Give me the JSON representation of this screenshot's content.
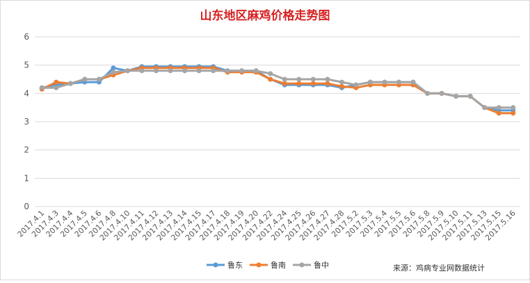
{
  "chart_data": {
    "type": "line",
    "title": "山东地区麻鸡价格走势图",
    "source": "来源：鸡病专业网数据统计",
    "ylim": [
      0,
      6
    ],
    "yticks": [
      0,
      1,
      2,
      3,
      4,
      5,
      6
    ],
    "grid": true,
    "legend_position": "bottom",
    "categories": [
      "2017.4.1",
      "2017.4.3",
      "2017.4.4",
      "2017.4.5",
      "2017.4.6",
      "2017.4.8",
      "2017.4.10",
      "2017.4.11",
      "2017.4.12",
      "2017.4.13",
      "2017.4.14",
      "2017.4.15",
      "2017.4.17",
      "2017.4.18",
      "2017.4.19",
      "2017.4.20",
      "2017.4.22",
      "2017.4.24",
      "2017.4.25",
      "2017.4.26",
      "2017.4.27",
      "2017.4.28",
      "2017.5.2",
      "2017.5.3",
      "2017.5.4",
      "2017.5.5",
      "2017.5.6",
      "2017.5.8",
      "2017.5.9",
      "2017.5.10",
      "2017.5.11",
      "2017.5.13",
      "2017.5.15",
      "2017.5.16"
    ],
    "series": [
      {
        "name": "鲁东",
        "color": "#5b9bd5",
        "values": [
          4.2,
          4.3,
          4.35,
          4.4,
          4.4,
          4.9,
          4.8,
          4.95,
          4.95,
          4.95,
          4.95,
          4.95,
          4.95,
          4.8,
          4.8,
          4.8,
          4.5,
          4.3,
          4.3,
          4.3,
          4.3,
          4.2,
          4.3,
          4.4,
          4.4,
          4.4,
          4.4,
          4.0,
          4.0,
          3.9,
          3.9,
          3.5,
          3.4,
          3.4
        ]
      },
      {
        "name": "鲁南",
        "color": "#ed7d31",
        "values": [
          4.15,
          4.4,
          4.35,
          4.5,
          4.5,
          4.65,
          4.8,
          4.9,
          4.9,
          4.9,
          4.9,
          4.9,
          4.9,
          4.75,
          4.75,
          4.75,
          4.5,
          4.35,
          4.35,
          4.35,
          4.35,
          4.25,
          4.2,
          4.3,
          4.3,
          4.3,
          4.3,
          4.0,
          4.0,
          3.9,
          3.9,
          3.5,
          3.3,
          3.3
        ]
      },
      {
        "name": "鲁中",
        "color": "#a5a5a5",
        "values": [
          4.2,
          4.2,
          4.35,
          4.5,
          4.5,
          4.75,
          4.8,
          4.8,
          4.8,
          4.8,
          4.8,
          4.8,
          4.8,
          4.8,
          4.8,
          4.8,
          4.7,
          4.5,
          4.5,
          4.5,
          4.5,
          4.4,
          4.3,
          4.4,
          4.4,
          4.4,
          4.4,
          4.0,
          4.0,
          3.9,
          3.9,
          3.5,
          3.5,
          3.5
        ]
      }
    ]
  }
}
